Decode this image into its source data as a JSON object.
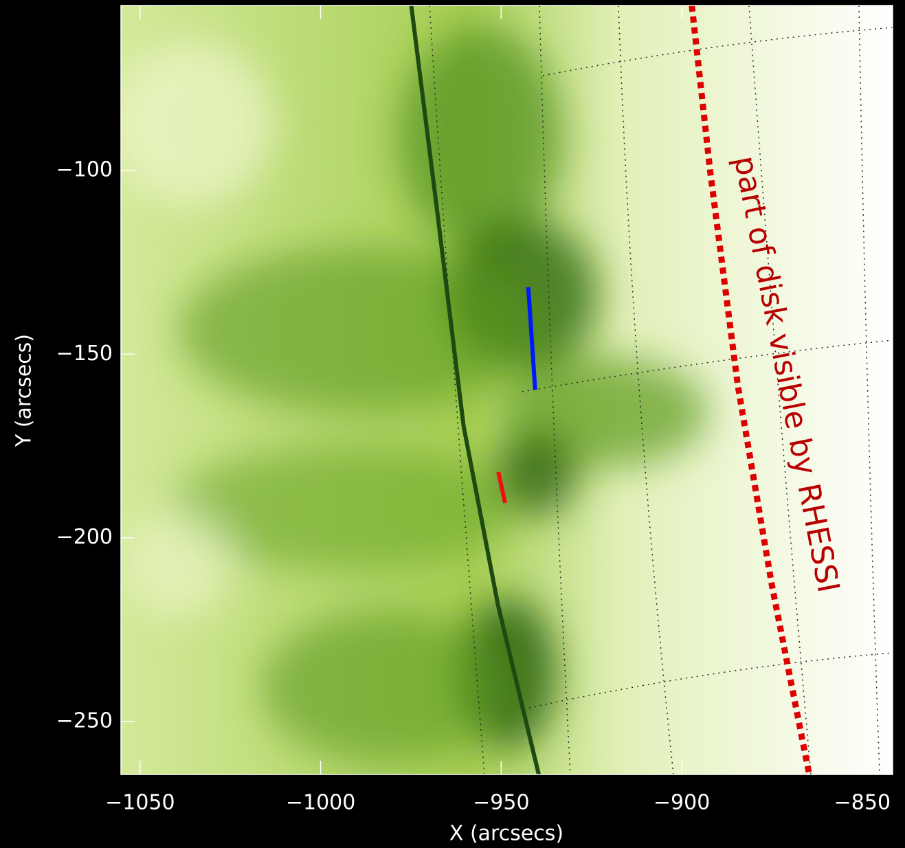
{
  "chart_data": {
    "type": "line",
    "xlabel": "X (arcsecs)",
    "ylabel": "Y (arcsecs)",
    "xlim": [
      -1055.3,
      -841.6
    ],
    "ylim": [
      -264.4,
      -55.1
    ],
    "xticks": [
      {
        "value": -1050,
        "label": "−1050"
      },
      {
        "value": -1000,
        "label": "−1000"
      },
      {
        "value": -950,
        "label": "−950"
      },
      {
        "value": -900,
        "label": "−900"
      },
      {
        "value": -850,
        "label": "−850"
      }
    ],
    "yticks": [
      {
        "value": -100,
        "label": "−100"
      },
      {
        "value": -150,
        "label": "−150"
      },
      {
        "value": -200,
        "label": "−200"
      },
      {
        "value": -250,
        "label": "−250"
      }
    ],
    "grid": false,
    "series": [
      {
        "color": "#1e4a12",
        "line_style": "solid",
        "x": [
          -974.9,
          -967.9,
          -960.4,
          -950.9,
          -939.6
        ],
        "values": [
          -55.1,
          -109.7,
          -169.6,
          -218.2,
          -264.4
        ]
      },
      {
        "color": "#dd0000",
        "line_style": "dotted",
        "x": [
          -897.2,
          -892.1,
          -884.5,
          -875.1,
          -864.7
        ],
        "values": [
          -55.1,
          -100.4,
          -158.4,
          -212.6,
          -264.4
        ]
      },
      {
        "color": "#0018ff",
        "line_style": "solid",
        "x": [
          -942.5,
          -940.6
        ],
        "values": [
          -131.8,
          -159.7
        ]
      },
      {
        "color": "#ee1010",
        "line_style": "solid",
        "x": [
          -950.8,
          -948.9
        ],
        "values": [
          -182.1,
          -190.5
        ]
      }
    ],
    "annotations": [
      "part of disk visible by RHESSI"
    ]
  }
}
